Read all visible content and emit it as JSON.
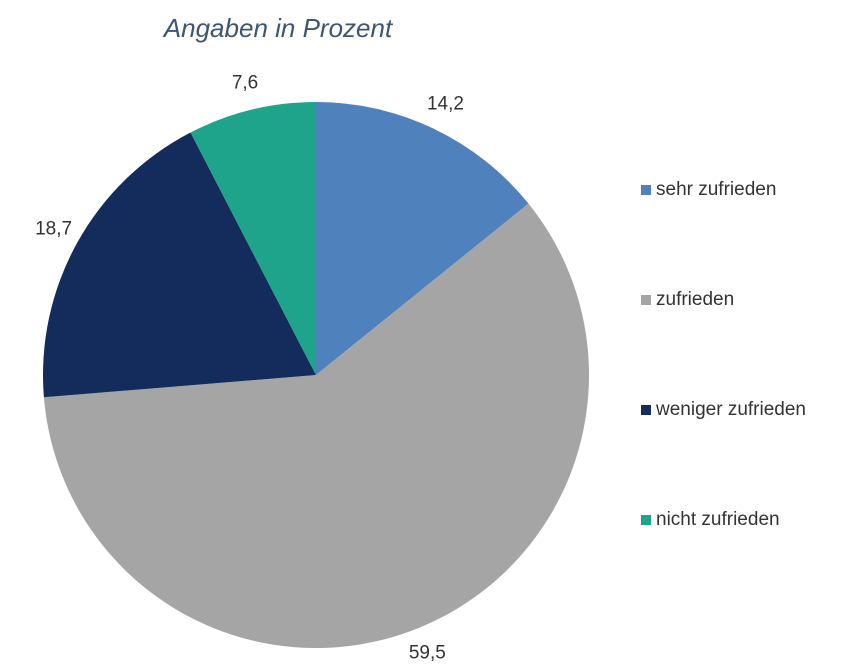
{
  "chart_data": {
    "type": "pie",
    "title": "Angaben in Prozent",
    "categories": [
      "sehr zufrieden",
      "zufrieden",
      "weniger zufrieden",
      "nicht zufrieden"
    ],
    "values": [
      14.2,
      59.5,
      18.7,
      7.6
    ],
    "value_labels": [
      "14,2",
      "59,5",
      "18,7",
      "7,6"
    ],
    "colors": [
      "#4f81bd",
      "#a5a5a5",
      "#132c5c",
      "#1fa48c"
    ],
    "legend": "right"
  }
}
